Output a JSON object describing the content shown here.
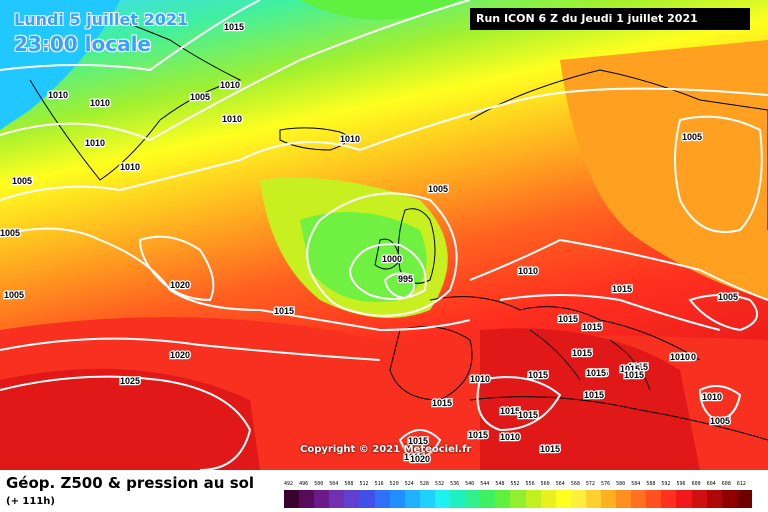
{
  "header": {
    "date_line": "Lundi 5 juillet 2021",
    "time_line": "23:00 locale",
    "run_info": "Run ICON 6 Z du Jeudi 1 juillet 2021"
  },
  "copyright": "Copyright © 2021 Meteociel.fr",
  "footer": {
    "title": "Géop. Z500 & pression au sol",
    "subtitle": "(+ 111h)"
  },
  "legend": {
    "ticks": [
      "492",
      "496",
      "500",
      "504",
      "508",
      "512",
      "516",
      "520",
      "524",
      "528",
      "532",
      "536",
      "540",
      "544",
      "548",
      "552",
      "556",
      "560",
      "564",
      "568",
      "572",
      "576",
      "580",
      "584",
      "588",
      "592",
      "596",
      "600",
      "604",
      "608",
      "612"
    ],
    "colors": [
      "#3a0030",
      "#5a0a5a",
      "#6a1a8a",
      "#7030b0",
      "#6040d0",
      "#4050e8",
      "#3070f8",
      "#2090ff",
      "#20b0ff",
      "#20d0ff",
      "#20f0f0",
      "#20f0c0",
      "#30f090",
      "#40f060",
      "#60f040",
      "#90f030",
      "#c0f020",
      "#e8f020",
      "#ffff20",
      "#fff040",
      "#ffd030",
      "#ffb020",
      "#ff9020",
      "#ff7020",
      "#ff5020",
      "#ff3020",
      "#f01818",
      "#d01010",
      "#b00808",
      "#900000",
      "#700000"
    ]
  },
  "pressure_labels": [
    {
      "text": "1015"
    },
    {
      "text": "1010"
    },
    {
      "text": "1010"
    },
    {
      "text": "1005"
    },
    {
      "text": "1010"
    },
    {
      "text": "1010"
    },
    {
      "text": "1010"
    },
    {
      "text": "1010"
    },
    {
      "text": "1010"
    },
    {
      "text": "1005"
    },
    {
      "text": "1005"
    },
    {
      "text": "1005"
    },
    {
      "text": "1005"
    },
    {
      "text": "1020"
    },
    {
      "text": "1015"
    },
    {
      "text": "1020"
    },
    {
      "text": "1025"
    },
    {
      "text": "1005"
    },
    {
      "text": "1000"
    },
    {
      "text": "995"
    },
    {
      "text": "1010"
    },
    {
      "text": "1015"
    },
    {
      "text": "1015"
    },
    {
      "text": "1015"
    },
    {
      "text": "1015"
    },
    {
      "text": "1015"
    },
    {
      "text": "1015"
    },
    {
      "text": "1015"
    },
    {
      "text": "1010"
    },
    {
      "text": "1015"
    },
    {
      "text": "1015"
    },
    {
      "text": "1015"
    },
    {
      "text": "1015"
    },
    {
      "text": "1010"
    },
    {
      "text": "1015"
    },
    {
      "text": "1015"
    },
    {
      "text": "1010"
    },
    {
      "text": "1020"
    },
    {
      "text": "1015"
    },
    {
      "text": "1015"
    },
    {
      "text": "1005"
    },
    {
      "text": "1010"
    },
    {
      "text": "1010"
    },
    {
      "text": "1005"
    },
    {
      "text": "1015"
    },
    {
      "text": "1015"
    },
    {
      "text": "1015"
    }
  ]
}
